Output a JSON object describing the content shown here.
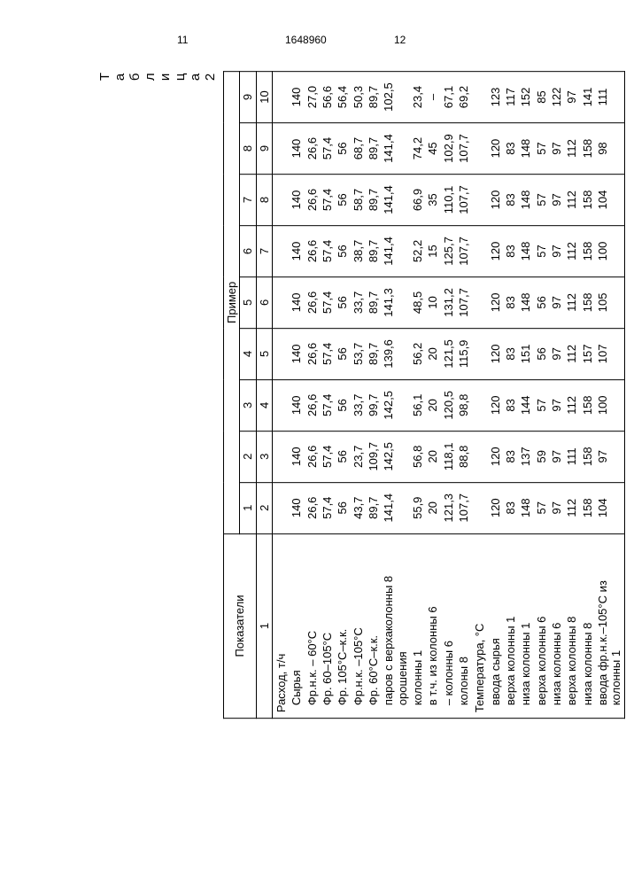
{
  "page": {
    "num_left": "11",
    "doc_number": "1648960",
    "num_right": "12",
    "table_caption": "Т а б л и ц а 2"
  },
  "headers": {
    "col0": "Показатели",
    "group": "Пример",
    "example_nums": [
      "1",
      "2",
      "3",
      "4",
      "5",
      "6",
      "7",
      "8",
      "9"
    ],
    "row2_first": "1",
    "row2_cols": [
      "2",
      "3",
      "4",
      "5",
      "6",
      "7",
      "8",
      "9",
      "10"
    ]
  },
  "rows": [
    {
      "label": "Расход, т/ч",
      "vals": [
        "",
        "",
        "",
        "",
        "",
        "",
        "",
        "",
        ""
      ],
      "cls": "section-title"
    },
    {
      "label": "Сырья",
      "vals": [
        "140",
        "140",
        "140",
        "140",
        "140",
        "140",
        "140",
        "140",
        "140"
      ],
      "cls": "indent1"
    },
    {
      "label": "Фр.н.к. – 60°С",
      "vals": [
        "26,6",
        "26,6",
        "26,6",
        "26,6",
        "26,6",
        "26,6",
        "26,6",
        "26,6",
        "27,0"
      ],
      "cls": "indent1"
    },
    {
      "label": "Фр. 60–105°С",
      "vals": [
        "57,4",
        "57,4",
        "57,4",
        "57,4",
        "57,4",
        "57,4",
        "57,4",
        "57,4",
        "56,6"
      ],
      "cls": "indent1"
    },
    {
      "label": "Фр. 105°С–к.к.",
      "vals": [
        "56",
        "56",
        "56",
        "56",
        "56",
        "56",
        "56",
        "56",
        "56,4"
      ],
      "cls": "indent1"
    },
    {
      "label": "Фр.н.к. –105°С",
      "vals": [
        "43,7",
        "23,7",
        "33,7",
        "53,7",
        "33,7",
        "38,7",
        "58,7",
        "68,7",
        "50,3"
      ],
      "cls": "indent1"
    },
    {
      "label": "Фр. 60°С–к.к.",
      "vals": [
        "89,7",
        "109,7",
        "99,7",
        "89,7",
        "89,7",
        "89,7",
        "89,7",
        "89,7",
        "89,7"
      ],
      "cls": "indent1"
    },
    {
      "label": "паров с верхаколонны 8 орошения",
      "vals": [
        "141,4",
        "142,5",
        "142,5",
        "139,6",
        "141,3",
        "141,4",
        "141,4",
        "141,4",
        "102,5"
      ],
      "cls": "indent1"
    },
    {
      "label": "колонны 1",
      "vals": [
        "55,9",
        "56,8",
        "56,1",
        "56,2",
        "48,5",
        "52,2",
        "66,9",
        "74,2",
        "23,4"
      ],
      "cls": "indent1"
    },
    {
      "label": "в т.ч. из колонны 6",
      "vals": [
        "20",
        "20",
        "20",
        "20",
        "10",
        "15",
        "35",
        "45",
        "–"
      ],
      "cls": "indent1"
    },
    {
      "label": "– колонны 6",
      "vals": [
        "121,3",
        "118,1",
        "120,5",
        "121,5",
        "131,2",
        "125,7",
        "110,1",
        "102,9",
        "67,1"
      ],
      "cls": "indent1"
    },
    {
      "label": "колоны 8",
      "vals": [
        "107,7",
        "88,8",
        "98,8",
        "115,9",
        "107,7",
        "107,7",
        "107,7",
        "107,7",
        "69,2"
      ],
      "cls": "indent1"
    },
    {
      "label": "Температура, °С",
      "vals": [
        "",
        "",
        "",
        "",
        "",
        "",
        "",
        "",
        ""
      ],
      "cls": "section-title"
    },
    {
      "label": "ввода сырья",
      "vals": [
        "120",
        "120",
        "120",
        "120",
        "120",
        "120",
        "120",
        "120",
        "123"
      ],
      "cls": "indent1"
    },
    {
      "label": "верха колонны 1",
      "vals": [
        "83",
        "83",
        "83",
        "83",
        "83",
        "83",
        "83",
        "83",
        "117"
      ],
      "cls": "indent1"
    },
    {
      "label": "низа колонны 1",
      "vals": [
        "148",
        "137",
        "144",
        "151",
        "148",
        "148",
        "148",
        "148",
        "152"
      ],
      "cls": "indent1"
    },
    {
      "label": "верха колонны 6",
      "vals": [
        "57",
        "59",
        "57",
        "56",
        "56",
        "57",
        "57",
        "57",
        "85"
      ],
      "cls": "indent1"
    },
    {
      "label": "низа колонны 6",
      "vals": [
        "97",
        "97",
        "97",
        "97",
        "97",
        "97",
        "97",
        "97",
        "122"
      ],
      "cls": "indent1"
    },
    {
      "label": "верха колонны 8",
      "vals": [
        "112",
        "111",
        "112",
        "112",
        "112",
        "112",
        "112",
        "112",
        "97"
      ],
      "cls": "indent1"
    },
    {
      "label": "низа колонны 8",
      "vals": [
        "158",
        "158",
        "158",
        "157",
        "158",
        "158",
        "158",
        "158",
        "141"
      ],
      "cls": "indent1"
    },
    {
      "label": "ввода фр.н.к.–105°С из колонны 1",
      "vals": [
        "104",
        "97",
        "100",
        "107",
        "105",
        "100",
        "104",
        "98",
        "111"
      ],
      "cls": "indent1"
    }
  ]
}
